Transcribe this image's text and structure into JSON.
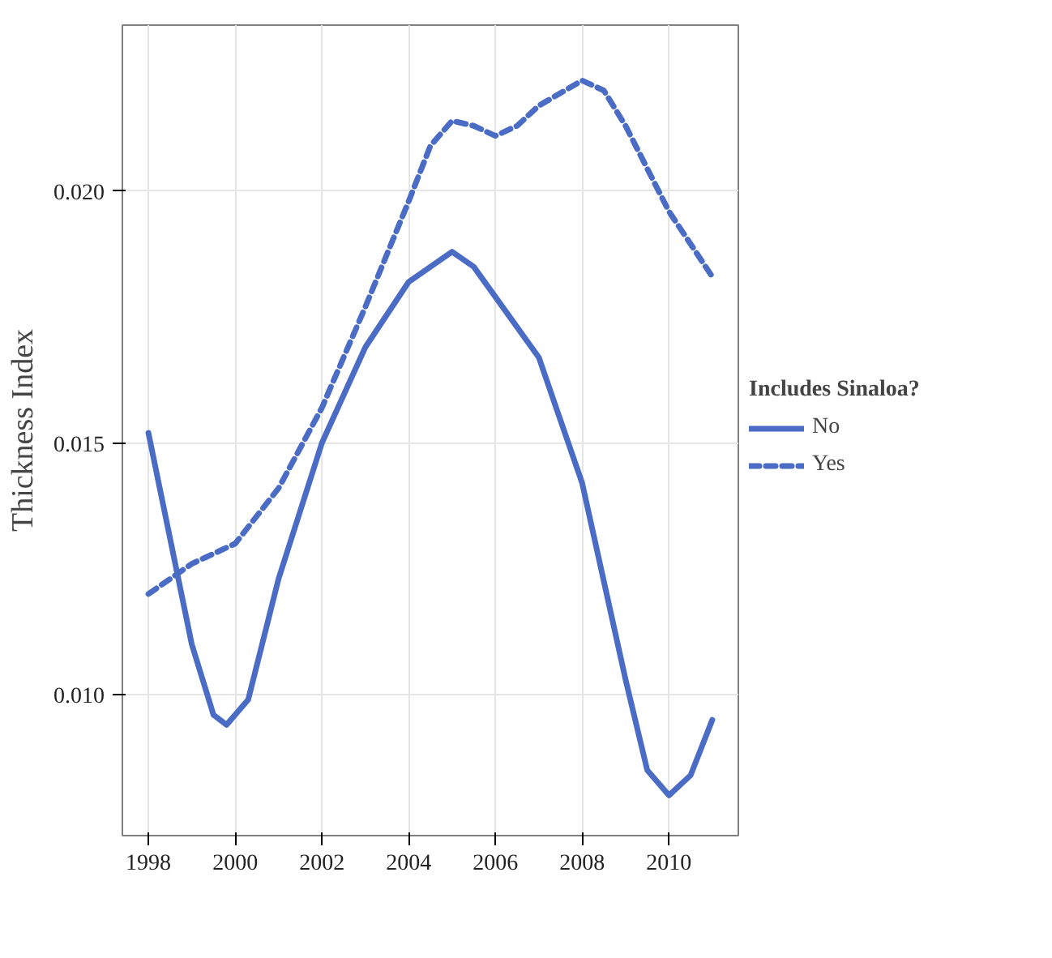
{
  "chart_data": {
    "type": "line",
    "ylabel": "Thickness Index",
    "legend_title": "Includes Sinaloa?",
    "legend": "right",
    "grid": true,
    "marker": "none",
    "xlim": [
      1997.4,
      2011.6
    ],
    "xticks": [
      1998,
      2000,
      2002,
      2004,
      2006,
      2008,
      2010
    ],
    "ylim": [
      0.0072,
      0.0233
    ],
    "yticks": [
      {
        "value": 0.01,
        "label": "0.010"
      },
      {
        "value": 0.015,
        "label": "0.015"
      },
      {
        "value": 0.02,
        "label": "0.020"
      }
    ],
    "series": [
      {
        "name": "No",
        "color": "#4a6cc4",
        "line_style": "solid",
        "x": [
          1998,
          1999,
          1999.5,
          1999.8,
          2000.3,
          2001,
          2002,
          2003,
          2004,
          2005,
          2005.5,
          2006,
          2007,
          2008,
          2009,
          2009.5,
          2010,
          2010.5,
          2011
        ],
        "values": [
          0.0152,
          0.011,
          0.0096,
          0.0094,
          0.0099,
          0.0123,
          0.015,
          0.0169,
          0.0182,
          0.0188,
          0.0185,
          0.0179,
          0.0167,
          0.0142,
          0.0103,
          0.0085,
          0.008,
          0.0084,
          0.0095
        ]
      },
      {
        "name": "Yes",
        "color": "#4a6cc4",
        "line_style": "dashed",
        "x": [
          1998,
          1999,
          2000,
          2001,
          2002,
          2003,
          2004,
          2004.5,
          2005,
          2005.5,
          2006,
          2006.5,
          2007,
          2008,
          2008.5,
          2009,
          2010,
          2011
        ],
        "values": [
          0.012,
          0.0126,
          0.013,
          0.0141,
          0.0157,
          0.0177,
          0.0198,
          0.0209,
          0.0214,
          0.0213,
          0.0211,
          0.0213,
          0.0217,
          0.0222,
          0.022,
          0.0213,
          0.0196,
          0.0183
        ]
      }
    ]
  }
}
